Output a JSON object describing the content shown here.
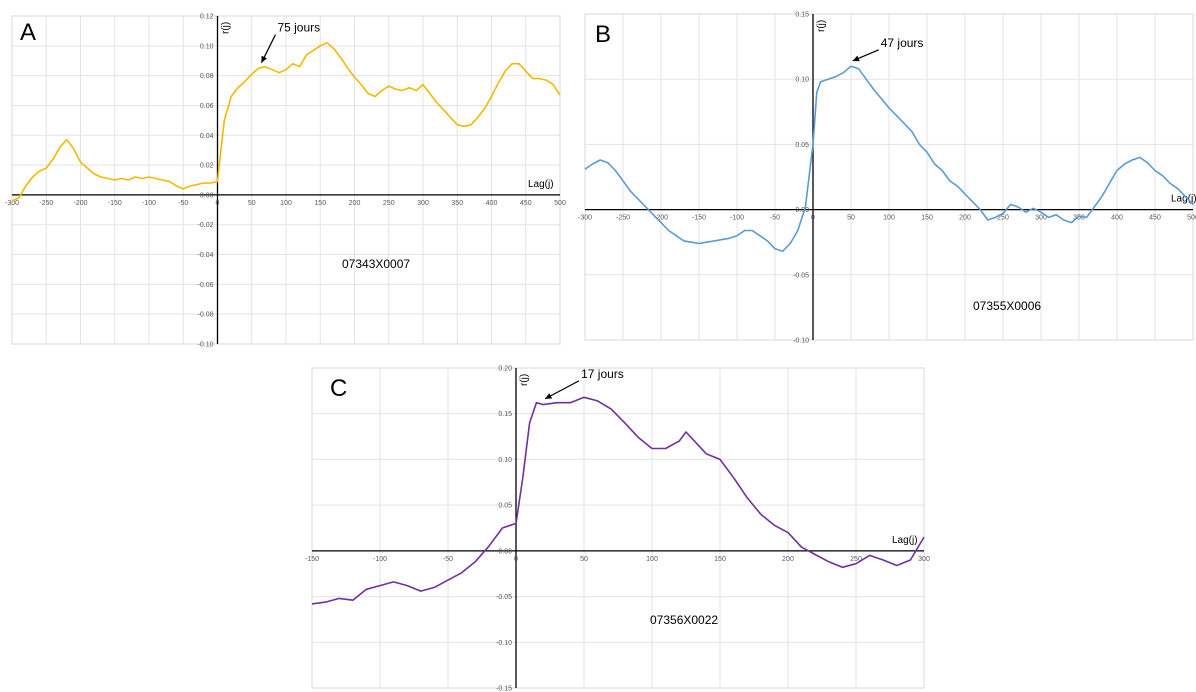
{
  "chart_data": [
    {
      "type": "line",
      "panel_letter": "A",
      "station": "07343X0007",
      "ylabel": "r(j)",
      "xlabel": "Lag(j)",
      "xlim": [
        -300,
        500
      ],
      "ylim": [
        -0.1,
        0.12
      ],
      "x_ticks": [
        "-300",
        "-250",
        "-200",
        "-150",
        "-100",
        "-50",
        "0",
        "50",
        "100",
        "150",
        "200",
        "250",
        "300",
        "350",
        "400",
        "450",
        "500"
      ],
      "y_ticks": [
        "0.12",
        "0.10",
        "0.08",
        "0.06",
        "0.04",
        "0.02",
        "0.00",
        "-0.02",
        "-0.04",
        "-0.06",
        "-0.08",
        "-0.10"
      ],
      "annotation": {
        "text": "75 jours",
        "x": 70,
        "y": 0.086
      },
      "color": "#f5b800",
      "series": [
        {
          "x": [
            -300,
            -290,
            -280,
            -270,
            -260,
            -250,
            -240,
            -230,
            -220,
            -210,
            -200,
            -190,
            -180,
            -170,
            -160,
            -150,
            -140,
            -130,
            -120,
            -110,
            -100,
            -90,
            -80,
            -70,
            -60,
            -50,
            -40,
            -30,
            -20,
            -10,
            0,
            5,
            10,
            20,
            30,
            40,
            50,
            60,
            70,
            80,
            90,
            100,
            110,
            120,
            130,
            140,
            150,
            160,
            170,
            180,
            190,
            200,
            210,
            220,
            230,
            240,
            250,
            260,
            270,
            280,
            290,
            300,
            310,
            320,
            330,
            340,
            350,
            360,
            370,
            380,
            390,
            400,
            410,
            420,
            430,
            440,
            450,
            460,
            470,
            480,
            490,
            500
          ],
          "y": [
            -0.004,
            -0.002,
            0.006,
            0.012,
            0.016,
            0.018,
            0.024,
            0.032,
            0.037,
            0.031,
            0.022,
            0.018,
            0.014,
            0.012,
            0.011,
            0.01,
            0.011,
            0.01,
            0.012,
            0.011,
            0.012,
            0.011,
            0.01,
            0.009,
            0.006,
            0.004,
            0.006,
            0.007,
            0.008,
            0.008,
            0.009,
            0.03,
            0.05,
            0.066,
            0.072,
            0.076,
            0.081,
            0.085,
            0.086,
            0.084,
            0.082,
            0.084,
            0.088,
            0.086,
            0.094,
            0.097,
            0.1,
            0.102,
            0.098,
            0.092,
            0.085,
            0.079,
            0.074,
            0.068,
            0.066,
            0.07,
            0.073,
            0.071,
            0.07,
            0.072,
            0.07,
            0.074,
            0.068,
            0.062,
            0.057,
            0.052,
            0.047,
            0.046,
            0.047,
            0.052,
            0.058,
            0.066,
            0.075,
            0.083,
            0.088,
            0.088,
            0.083,
            0.078,
            0.078,
            0.077,
            0.074,
            0.067
          ]
        }
      ]
    },
    {
      "type": "line",
      "panel_letter": "B",
      "station": "07355X0006",
      "ylabel": "r(j)",
      "xlabel": "Lag(j)",
      "xlim": [
        -300,
        500
      ],
      "ylim": [
        -0.1,
        0.15
      ],
      "x_ticks": [
        "-300",
        "-250",
        "-200",
        "-150",
        "-100",
        "-50",
        "0",
        "50",
        "100",
        "150",
        "200",
        "250",
        "300",
        "350",
        "400",
        "450",
        "500"
      ],
      "y_ticks": [
        "0.15",
        "0.10",
        "0.05",
        "0.00",
        "-0.05",
        "-0.10"
      ],
      "annotation": {
        "text": "47 jours",
        "x": 47,
        "y": 0.111
      },
      "color": "#5b9bd5",
      "series": [
        {
          "x": [
            -300,
            -290,
            -280,
            -270,
            -260,
            -250,
            -240,
            -230,
            -220,
            -210,
            -200,
            -190,
            -180,
            -170,
            -160,
            -150,
            -140,
            -130,
            -120,
            -110,
            -100,
            -90,
            -80,
            -70,
            -60,
            -50,
            -40,
            -30,
            -20,
            -10,
            0,
            5,
            10,
            20,
            30,
            40,
            50,
            60,
            70,
            80,
            90,
            100,
            110,
            120,
            130,
            140,
            150,
            160,
            170,
            180,
            190,
            200,
            210,
            220,
            230,
            240,
            250,
            260,
            270,
            280,
            290,
            300,
            310,
            320,
            330,
            340,
            350,
            360,
            370,
            380,
            390,
            400,
            410,
            420,
            430,
            440,
            450,
            460,
            470,
            480,
            490,
            500
          ],
          "y": [
            0.031,
            0.035,
            0.038,
            0.036,
            0.03,
            0.022,
            0.014,
            0.008,
            0.002,
            -0.004,
            -0.01,
            -0.016,
            -0.02,
            -0.024,
            -0.025,
            -0.026,
            -0.025,
            -0.024,
            -0.023,
            -0.022,
            -0.02,
            -0.016,
            -0.016,
            -0.02,
            -0.024,
            -0.03,
            -0.032,
            -0.026,
            -0.016,
            0.002,
            0.05,
            0.09,
            0.098,
            0.1,
            0.102,
            0.105,
            0.11,
            0.108,
            0.1,
            0.092,
            0.085,
            0.078,
            0.072,
            0.066,
            0.06,
            0.05,
            0.044,
            0.035,
            0.03,
            0.022,
            0.018,
            0.012,
            0.006,
            0.0,
            -0.008,
            -0.006,
            -0.003,
            0.004,
            0.002,
            -0.002,
            0.001,
            -0.002,
            -0.006,
            -0.004,
            -0.008,
            -0.01,
            -0.005,
            -0.006,
            0.002,
            0.01,
            0.02,
            0.03,
            0.035,
            0.038,
            0.04,
            0.036,
            0.03,
            0.026,
            0.02,
            0.016,
            0.01,
            0.004
          ]
        }
      ]
    },
    {
      "type": "line",
      "panel_letter": "C",
      "station": "07356X0022",
      "ylabel": "r(j)",
      "xlabel": "Lag(j)",
      "xlim": [
        -150,
        300
      ],
      "ylim": [
        -0.15,
        0.2
      ],
      "x_ticks": [
        "-150",
        "-100",
        "-50",
        "0",
        "50",
        "100",
        "150",
        "200",
        "250",
        "300"
      ],
      "y_ticks": [
        "0.20",
        "0.15",
        "0.10",
        "0.05",
        "0.00",
        "-0.05",
        "-0.10",
        "-0.15"
      ],
      "annotation": {
        "text": "17 jours",
        "x": 17,
        "y": 0.162
      },
      "color": "#7030a0",
      "series": [
        {
          "x": [
            -150,
            -140,
            -130,
            -120,
            -110,
            -100,
            -90,
            -80,
            -70,
            -60,
            -50,
            -40,
            -30,
            -20,
            -10,
            0,
            5,
            10,
            15,
            20,
            30,
            40,
            50,
            60,
            70,
            80,
            90,
            100,
            110,
            120,
            125,
            130,
            140,
            150,
            160,
            170,
            180,
            190,
            200,
            210,
            220,
            230,
            240,
            250,
            260,
            270,
            280,
            290,
            300
          ],
          "y": [
            -0.058,
            -0.056,
            -0.052,
            -0.054,
            -0.042,
            -0.038,
            -0.034,
            -0.038,
            -0.044,
            -0.04,
            -0.032,
            -0.024,
            -0.012,
            0.005,
            0.025,
            0.03,
            0.08,
            0.14,
            0.162,
            0.16,
            0.162,
            0.162,
            0.168,
            0.164,
            0.155,
            0.14,
            0.124,
            0.112,
            0.112,
            0.12,
            0.13,
            0.122,
            0.106,
            0.1,
            0.08,
            0.058,
            0.04,
            0.028,
            0.02,
            0.004,
            -0.004,
            -0.012,
            -0.018,
            -0.014,
            -0.005,
            -0.01,
            -0.016,
            -0.01,
            0.015
          ]
        }
      ]
    }
  ]
}
